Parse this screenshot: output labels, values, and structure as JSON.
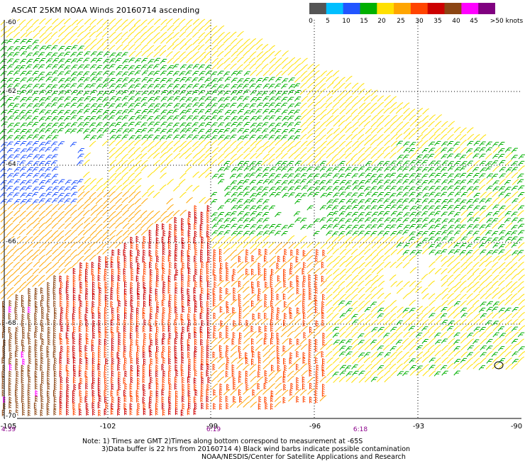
{
  "title": "ASCAT 25KM NOAA Winds 20160714 ascending",
  "legend": {
    "colors": [
      "#555555",
      "#00bfff",
      "#2255ff",
      "#00b000",
      "#ffe000",
      "#ffa500",
      "#ff4400",
      "#cc0000",
      "#8b4513",
      "#ff00ff",
      "#800080"
    ],
    "labels": [
      "0",
      "5",
      "10",
      "15",
      "20",
      "25",
      "30",
      "35",
      "40",
      "45",
      ">50 knots"
    ]
  },
  "map": {
    "latitudes": [
      "-60",
      "-62",
      "-64",
      "-66",
      "-68",
      "-70"
    ],
    "longitudes": [
      "-105",
      "-102",
      "-99",
      "-96",
      "-93",
      "-90"
    ],
    "times": [
      {
        "label": "4:39",
        "lon": "-105"
      },
      {
        "label": "6:19",
        "lon": "-99"
      },
      {
        "label": "6:18",
        "lon": "-95"
      }
    ]
  },
  "notes": {
    "line1": "Note: 1) Times are GMT 2)Times along bottom correspond to measurement at -65S",
    "line2": "3)Data buffer is 22 hrs from 20160714 4) Black wind barbs indicate possible contamination",
    "line3": "NOAA/NESDIS/Center for Satellite Applications and Research"
  }
}
